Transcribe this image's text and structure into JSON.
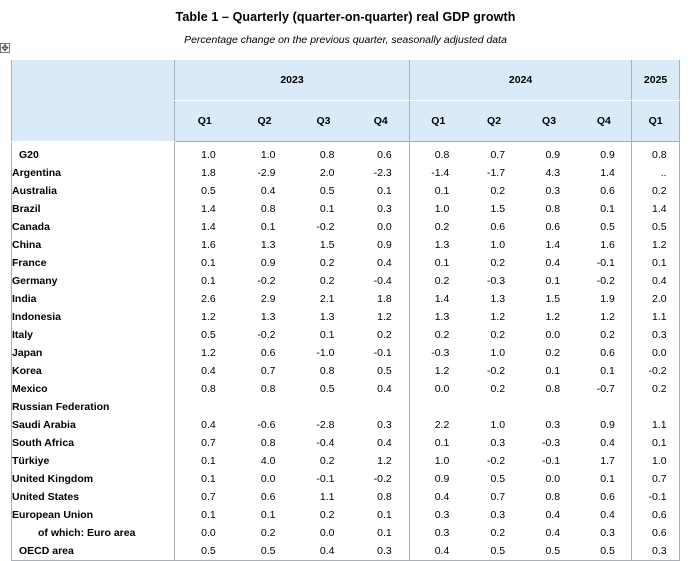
{
  "title": "Table 1 – Quarterly (quarter-on-quarter) real GDP growth",
  "subtitle": "Percentage change on the previous quarter, seasonally adjusted data",
  "icons": {
    "move_handle": "move-icon"
  },
  "years": [
    {
      "label": "2023",
      "span": 4
    },
    {
      "label": "2024",
      "span": 4
    },
    {
      "label": "2025",
      "span": 1
    }
  ],
  "quarters": [
    "Q1",
    "Q2",
    "Q3",
    "Q4",
    "Q1",
    "Q2",
    "Q3",
    "Q4",
    "Q1"
  ],
  "rows": [
    {
      "name": "G20",
      "level": "top",
      "values": [
        "1.0",
        "1.0",
        "0.8",
        "0.6",
        "0.8",
        "0.7",
        "0.9",
        "0.9",
        "0.8"
      ]
    },
    {
      "name": "Argentina",
      "values": [
        "1.8",
        "-2.9",
        "2.0",
        "-2.3",
        "-1.4",
        "-1.7",
        "4.3",
        "1.4",
        ".."
      ]
    },
    {
      "name": "Australia",
      "values": [
        "0.5",
        "0.4",
        "0.5",
        "0.1",
        "0.1",
        "0.2",
        "0.3",
        "0.6",
        "0.2"
      ]
    },
    {
      "name": "Brazil",
      "values": [
        "1.4",
        "0.8",
        "0.1",
        "0.3",
        "1.0",
        "1.5",
        "0.8",
        "0.1",
        "1.4"
      ]
    },
    {
      "name": "Canada",
      "values": [
        "1.4",
        "0.1",
        "-0.2",
        "0.0",
        "0.2",
        "0.6",
        "0.6",
        "0.5",
        "0.5"
      ]
    },
    {
      "name": "China",
      "values": [
        "1.6",
        "1.3",
        "1.5",
        "0.9",
        "1.3",
        "1.0",
        "1.4",
        "1.6",
        "1.2"
      ]
    },
    {
      "name": "France",
      "values": [
        "0.1",
        "0.9",
        "0.2",
        "0.4",
        "0.1",
        "0.2",
        "0.4",
        "-0.1",
        "0.1"
      ]
    },
    {
      "name": "Germany",
      "values": [
        "0.1",
        "-0.2",
        "0.2",
        "-0.4",
        "0.2",
        "-0.3",
        "0.1",
        "-0.2",
        "0.4"
      ]
    },
    {
      "name": "India",
      "values": [
        "2.6",
        "2.9",
        "2.1",
        "1.8",
        "1.4",
        "1.3",
        "1.5",
        "1.9",
        "2.0"
      ]
    },
    {
      "name": "Indonesia",
      "values": [
        "1.2",
        "1.3",
        "1.3",
        "1.2",
        "1.3",
        "1.2",
        "1.2",
        "1.2",
        "1.1"
      ]
    },
    {
      "name": "Italy",
      "values": [
        "0.5",
        "-0.2",
        "0.1",
        "0.2",
        "0.2",
        "0.2",
        "0.0",
        "0.2",
        "0.3"
      ]
    },
    {
      "name": "Japan",
      "values": [
        "1.2",
        "0.6",
        "-1.0",
        "-0.1",
        "-0.3",
        "1.0",
        "0.2",
        "0.6",
        "0.0"
      ]
    },
    {
      "name": "Korea",
      "values": [
        "0.4",
        "0.7",
        "0.8",
        "0.5",
        "1.2",
        "-0.2",
        "0.1",
        "0.1",
        "-0.2"
      ]
    },
    {
      "name": "Mexico",
      "values": [
        "0.8",
        "0.8",
        "0.5",
        "0.4",
        "0.0",
        "0.2",
        "0.8",
        "-0.7",
        "0.2"
      ]
    },
    {
      "name": "Russian Federation",
      "values": [
        "",
        "",
        "",
        "",
        "",
        "",
        "",
        "",
        ""
      ]
    },
    {
      "name": "Saudi Arabia",
      "values": [
        "0.4",
        "-0.6",
        "-2.8",
        "0.3",
        "2.2",
        "1.0",
        "0.3",
        "0.9",
        "1.1"
      ]
    },
    {
      "name": "South Africa",
      "values": [
        "0.7",
        "0.8",
        "-0.4",
        "0.4",
        "0.1",
        "0.3",
        "-0.3",
        "0.4",
        "0.1"
      ]
    },
    {
      "name": "Türkiye",
      "values": [
        "0.1",
        "4.0",
        "0.2",
        "1.2",
        "1.0",
        "-0.2",
        "-0.1",
        "1.7",
        "1.0"
      ]
    },
    {
      "name": "United Kingdom",
      "values": [
        "0.1",
        "0.0",
        "-0.1",
        "-0.2",
        "0.9",
        "0.5",
        "0.0",
        "0.1",
        "0.7"
      ]
    },
    {
      "name": "United States",
      "values": [
        "0.7",
        "0.6",
        "1.1",
        "0.8",
        "0.4",
        "0.7",
        "0.8",
        "0.6",
        "-0.1"
      ]
    },
    {
      "name": "European Union",
      "values": [
        "0.1",
        "0.1",
        "0.2",
        "0.1",
        "0.3",
        "0.3",
        "0.4",
        "0.4",
        "0.6"
      ]
    },
    {
      "name": "of which: Euro area",
      "level": "sub",
      "values": [
        "0.0",
        "0.2",
        "0.0",
        "0.1",
        "0.3",
        "0.2",
        "0.4",
        "0.3",
        "0.6"
      ]
    },
    {
      "name": "OECD area",
      "level": "top",
      "values": [
        "0.5",
        "0.5",
        "0.4",
        "0.3",
        "0.4",
        "0.5",
        "0.5",
        "0.5",
        "0.3"
      ]
    }
  ]
}
